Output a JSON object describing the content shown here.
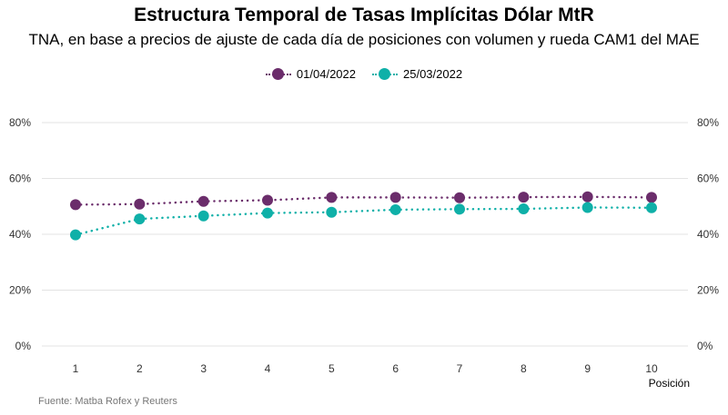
{
  "chart_data": {
    "type": "line",
    "title": "Estructura Temporal de Tasas Implícitas Dólar MtR",
    "subtitle": "TNA, en base a precios de ajuste de cada día de posiciones con volumen y rueda CAM1 del MAE",
    "xlabel": "Posición",
    "ylabel": "",
    "x": [
      1,
      2,
      3,
      4,
      5,
      6,
      7,
      8,
      9,
      10
    ],
    "ylim": [
      0,
      80
    ],
    "y_ticks": [
      0,
      20,
      40,
      60,
      80
    ],
    "y_tick_labels": [
      "0%",
      "20%",
      "40%",
      "60%",
      "80%"
    ],
    "x_tick_labels": [
      "1",
      "2",
      "3",
      "4",
      "5",
      "6",
      "7",
      "8",
      "9",
      "10"
    ],
    "grid": "horizontal",
    "legend_position": "top",
    "series": [
      {
        "name": "01/04/2022",
        "color": "#6b2d6b",
        "values": [
          50.6,
          50.8,
          51.8,
          52.2,
          53.2,
          53.2,
          53.1,
          53.3,
          53.4,
          53.2
        ]
      },
      {
        "name": "25/03/2022",
        "color": "#0fb0a8",
        "values": [
          39.8,
          45.5,
          46.6,
          47.6,
          47.9,
          48.8,
          49.0,
          49.1,
          49.6,
          49.5
        ]
      }
    ]
  },
  "source": "Fuente: Matba Rofex y Reuters"
}
